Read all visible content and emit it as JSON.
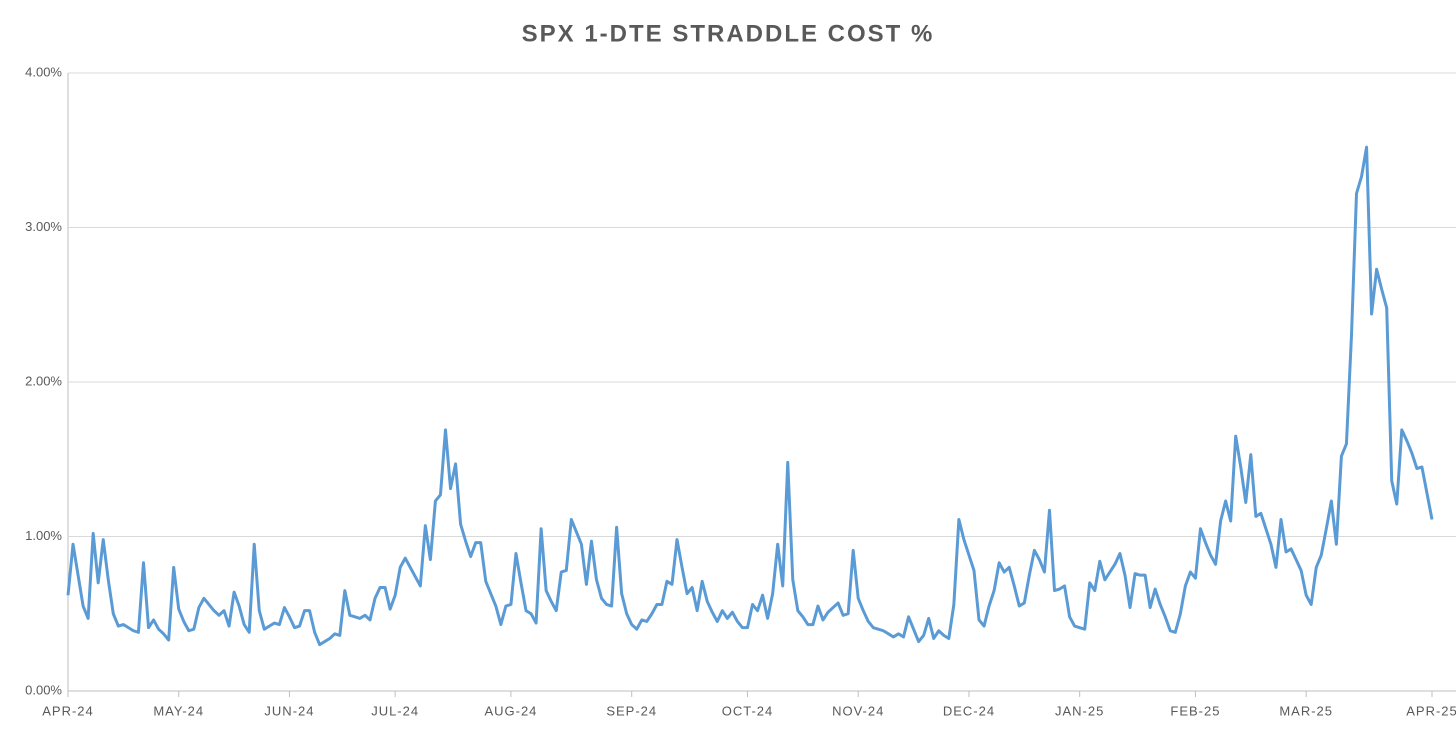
{
  "chart_data": {
    "type": "line",
    "title": "SPX 1-DTE STRADDLE COST %",
    "categories": [
      "APR-24",
      null,
      null,
      null,
      null,
      null,
      null,
      null,
      null,
      null,
      null,
      null,
      null,
      null,
      null,
      null,
      null,
      null,
      null,
      null,
      null,
      null,
      "MAY-24",
      null,
      null,
      null,
      null,
      null,
      null,
      null,
      null,
      null,
      null,
      null,
      null,
      null,
      null,
      null,
      null,
      null,
      null,
      null,
      null,
      null,
      "JUN-24",
      null,
      null,
      null,
      null,
      null,
      null,
      null,
      null,
      null,
      null,
      null,
      null,
      null,
      null,
      null,
      null,
      null,
      null,
      null,
      null,
      "JUL-24",
      null,
      null,
      null,
      null,
      null,
      null,
      null,
      null,
      null,
      null,
      null,
      null,
      null,
      null,
      null,
      null,
      null,
      null,
      null,
      null,
      null,
      null,
      "AUG-24",
      null,
      null,
      null,
      null,
      null,
      null,
      null,
      null,
      null,
      null,
      null,
      null,
      null,
      null,
      null,
      null,
      null,
      null,
      null,
      null,
      null,
      null,
      null,
      "SEP-24",
      null,
      null,
      null,
      null,
      null,
      null,
      null,
      null,
      null,
      null,
      null,
      null,
      null,
      null,
      null,
      null,
      null,
      null,
      null,
      null,
      null,
      null,
      "OCT-24",
      null,
      null,
      null,
      null,
      null,
      null,
      null,
      null,
      null,
      null,
      null,
      null,
      null,
      null,
      null,
      null,
      null,
      null,
      null,
      null,
      null,
      "NOV-24",
      null,
      null,
      null,
      null,
      null,
      null,
      null,
      null,
      null,
      null,
      null,
      null,
      null,
      null,
      null,
      null,
      null,
      null,
      null,
      null,
      null,
      "DEC-24",
      null,
      null,
      null,
      null,
      null,
      null,
      null,
      null,
      null,
      null,
      null,
      null,
      null,
      null,
      null,
      null,
      null,
      null,
      null,
      null,
      null,
      "JAN-25",
      null,
      null,
      null,
      null,
      null,
      null,
      null,
      null,
      null,
      null,
      null,
      null,
      null,
      null,
      null,
      null,
      null,
      null,
      null,
      null,
      null,
      null,
      "FEB-25",
      null,
      null,
      null,
      null,
      null,
      null,
      null,
      null,
      null,
      null,
      null,
      null,
      null,
      null,
      null,
      null,
      null,
      null,
      null,
      null,
      null,
      "MAR-25",
      null,
      null,
      null,
      null,
      null,
      null,
      null,
      null,
      null,
      null,
      null,
      null,
      null,
      null,
      null,
      null,
      null,
      null,
      null,
      null,
      null,
      null,
      null,
      null,
      "APR-25"
    ],
    "series": [
      {
        "color": "#5b9bd5",
        "values": [
          0.62,
          0.95,
          0.75,
          0.55,
          0.47,
          1.02,
          0.7,
          0.98,
          0.72,
          0.5,
          0.42,
          0.43,
          0.41,
          0.39,
          0.38,
          0.83,
          0.41,
          0.46,
          0.4,
          0.37,
          0.33,
          0.8,
          0.53,
          0.45,
          0.39,
          0.4,
          0.54,
          0.6,
          0.56,
          0.52,
          0.49,
          0.52,
          0.42,
          0.64,
          0.55,
          0.43,
          0.38,
          0.95,
          0.52,
          0.4,
          0.42,
          0.44,
          0.43,
          0.54,
          0.48,
          0.41,
          0.42,
          0.52,
          0.52,
          0.38,
          0.3,
          0.32,
          0.34,
          0.37,
          0.36,
          0.65,
          0.49,
          0.48,
          0.47,
          0.49,
          0.46,
          0.6,
          0.67,
          0.67,
          0.53,
          0.62,
          0.8,
          0.86,
          0.8,
          0.74,
          0.68,
          1.07,
          0.85,
          1.23,
          1.27,
          1.69,
          1.31,
          1.47,
          1.08,
          0.97,
          0.87,
          0.96,
          0.96,
          0.71,
          0.63,
          0.55,
          0.43,
          0.55,
          0.56,
          0.89,
          0.7,
          0.52,
          0.5,
          0.44,
          1.05,
          0.65,
          0.58,
          0.52,
          0.77,
          0.78,
          1.11,
          1.03,
          0.95,
          0.69,
          0.97,
          0.72,
          0.6,
          0.56,
          0.55,
          1.06,
          0.63,
          0.5,
          0.43,
          0.4,
          0.46,
          0.45,
          0.5,
          0.56,
          0.56,
          0.71,
          0.69,
          0.98,
          0.8,
          0.63,
          0.67,
          0.52,
          0.71,
          0.58,
          0.51,
          0.45,
          0.52,
          0.47,
          0.51,
          0.45,
          0.41,
          0.41,
          0.56,
          0.52,
          0.62,
          0.47,
          0.63,
          0.95,
          0.68,
          1.48,
          0.72,
          0.52,
          0.48,
          0.43,
          0.43,
          0.55,
          0.46,
          0.51,
          0.54,
          0.57,
          0.49,
          0.5,
          0.91,
          0.6,
          0.52,
          0.45,
          0.41,
          0.4,
          0.39,
          0.37,
          0.35,
          0.37,
          0.35,
          0.48,
          0.4,
          0.32,
          0.36,
          0.47,
          0.34,
          0.39,
          0.36,
          0.34,
          0.56,
          1.11,
          0.98,
          0.88,
          0.78,
          0.46,
          0.42,
          0.55,
          0.65,
          0.83,
          0.77,
          0.8,
          0.68,
          0.55,
          0.57,
          0.75,
          0.91,
          0.85,
          0.77,
          1.17,
          0.65,
          0.66,
          0.68,
          0.48,
          0.42,
          0.41,
          0.4,
          0.7,
          0.65,
          0.84,
          0.72,
          0.77,
          0.82,
          0.89,
          0.75,
          0.54,
          0.76,
          0.75,
          0.75,
          0.54,
          0.66,
          0.56,
          0.48,
          0.39,
          0.38,
          0.5,
          0.68,
          0.77,
          0.73,
          1.05,
          0.96,
          0.88,
          0.82,
          1.1,
          1.23,
          1.1,
          1.65,
          1.45,
          1.22,
          1.53,
          1.13,
          1.15,
          1.05,
          0.95,
          0.8,
          1.11,
          0.9,
          0.92,
          0.85,
          0.78,
          0.62,
          0.56,
          0.8,
          0.88,
          1.05,
          1.23,
          0.95,
          1.52,
          1.6,
          2.3,
          3.22,
          3.33,
          3.52,
          2.44,
          2.73,
          2.6,
          2.48,
          1.36,
          1.21,
          1.69,
          1.62,
          1.54,
          1.44,
          1.45,
          1.28,
          1.11
        ]
      }
    ],
    "ylim": [
      0,
      4
    ],
    "yticks": [
      {
        "value": 0,
        "label": "0.00%"
      },
      {
        "value": 1,
        "label": "1.00%"
      },
      {
        "value": 2,
        "label": "2.00%"
      },
      {
        "value": 3,
        "label": "3.00%"
      },
      {
        "value": 4,
        "label": "4.00%"
      }
    ],
    "grid": true
  }
}
